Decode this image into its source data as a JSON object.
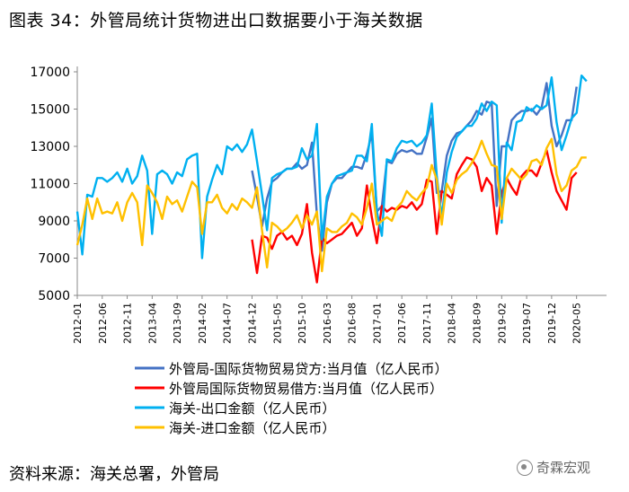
{
  "title": "图表 34：外管局统计货物进出口数据要小于海关数据",
  "source": "资料来源：海关总署，外管局",
  "watermark": "奇霖宏观",
  "chart_data": {
    "type": "line",
    "ylim": [
      5000,
      17000
    ],
    "yticks": [
      5000,
      7000,
      9000,
      11000,
      13000,
      15000,
      17000
    ],
    "x_start": "2012-01",
    "n_months": 107,
    "xtick_labels": [
      "2012-01",
      "2012-06",
      "2012-11",
      "2013-04",
      "2013-09",
      "2014-02",
      "2014-07",
      "2014-12",
      "2015-05",
      "2015-10",
      "2016-03",
      "2016-08",
      "2017-01",
      "2017-06",
      "2017-11",
      "2018-04",
      "2018-09",
      "2019-02",
      "2019-07",
      "2019-12",
      "2020-05"
    ],
    "legend_position": "bottom",
    "series": [
      {
        "name": "外管局-国际货物贸易贷方:当月值（亿人民币）",
        "color": "#4472C4",
        "start": "2014-12",
        "values": [
          11700,
          10300,
          8700,
          10200,
          11100,
          11300,
          11600,
          11800,
          11800,
          12100,
          11800,
          12000,
          13200,
          9300,
          7400,
          10000,
          11000,
          11300,
          11300,
          11600,
          11900,
          11900,
          11800,
          12600,
          13700,
          9500,
          9800,
          12200,
          12100,
          12600,
          12800,
          12700,
          12800,
          12600,
          12600,
          13500,
          14500,
          10500,
          10600,
          12500,
          13300,
          13700,
          13800,
          14100,
          14400,
          14900,
          14700,
          15400,
          15300,
          9800,
          13000,
          13000,
          14400,
          14700,
          14900,
          14900,
          15000,
          14700,
          15100,
          16400,
          14100,
          13000,
          13600,
          14400,
          14400,
          16200
        ]
      },
      {
        "name": "外管局国际货物贸易借方:当月值（亿人民币）",
        "color": "#FF0000",
        "start": "2014-12",
        "values": [
          8000,
          6200,
          8200,
          8100,
          7500,
          8200,
          8400,
          8000,
          8200,
          7700,
          8300,
          9900,
          7300,
          5700,
          8100,
          7800,
          8000,
          8200,
          8300,
          8600,
          8900,
          8200,
          8600,
          10900,
          9200,
          7800,
          9800,
          9500,
          9700,
          9600,
          9800,
          9700,
          10000,
          9600,
          9900,
          11200,
          11100,
          8300,
          10600,
          10400,
          10200,
          11500,
          12000,
          12400,
          12300,
          11900,
          10600,
          11300,
          10900,
          8300,
          10500,
          11300,
          10800,
          10400,
          11400,
          11700,
          11700,
          11400,
          12100,
          12800,
          11600,
          10600,
          10100,
          9600,
          11300,
          11600
        ]
      },
      {
        "name": "海关-出口金额（亿人民币）",
        "color": "#00B0F0",
        "start": "2012-01",
        "values": [
          9500,
          7200,
          10400,
          10300,
          11300,
          11300,
          11100,
          11300,
          11600,
          11100,
          11800,
          11000,
          11400,
          12500,
          11700,
          8300,
          11500,
          11700,
          11500,
          11000,
          11600,
          11400,
          12300,
          12500,
          12600,
          7000,
          10300,
          11200,
          12000,
          11500,
          13000,
          12800,
          13100,
          12700,
          13100,
          13900,
          12200,
          10400,
          8500,
          11300,
          11500,
          11600,
          11800,
          11800,
          11900,
          12900,
          12300,
          12500,
          14200,
          8000,
          10300,
          11000,
          11400,
          11500,
          11600,
          11700,
          12500,
          12500,
          12200,
          14200,
          9500,
          8200,
          12300,
          12200,
          12900,
          13300,
          13200,
          13300,
          13000,
          13200,
          13600,
          15300,
          11400,
          9200,
          11600,
          12700,
          13500,
          13800,
          14100,
          14100,
          14500,
          15300,
          14900,
          15400,
          15200,
          8900,
          13200,
          12800,
          14300,
          14400,
          15100,
          14900,
          15200,
          15000,
          15200,
          16700,
          14300,
          12800,
          13600,
          14500,
          14800,
          16800,
          16500
        ]
      },
      {
        "name": "海关-进口金额（亿人民币）",
        "color": "#FFC000",
        "start": "2012-01",
        "values": [
          7700,
          8800,
          10200,
          9100,
          10200,
          9400,
          9500,
          9400,
          10000,
          9000,
          10000,
          10500,
          10000,
          7700,
          10900,
          10500,
          10000,
          9100,
          10300,
          9900,
          10100,
          9500,
          10300,
          11100,
          10800,
          8300,
          10000,
          10000,
          10400,
          9700,
          9400,
          9900,
          9600,
          10200,
          10000,
          9700,
          10800,
          8500,
          6500,
          8900,
          8700,
          8400,
          8600,
          8900,
          9300,
          8600,
          9300,
          8800,
          9500,
          6300,
          8600,
          8400,
          8400,
          8700,
          8900,
          9400,
          9200,
          8800,
          9700,
          11000,
          8800,
          9000,
          9200,
          9000,
          9700,
          10000,
          10600,
          10300,
          10100,
          10500,
          10800,
          12000,
          11200,
          8800,
          11000,
          10500,
          11200,
          11500,
          11700,
          12100,
          12600,
          13300,
          12600,
          12000,
          11900,
          9100,
          11300,
          11800,
          11500,
          11200,
          11500,
          12200,
          12300,
          12000,
          12900,
          13400,
          11500,
          10600,
          10900,
          11700,
          11900,
          12400,
          12400
        ]
      }
    ]
  }
}
